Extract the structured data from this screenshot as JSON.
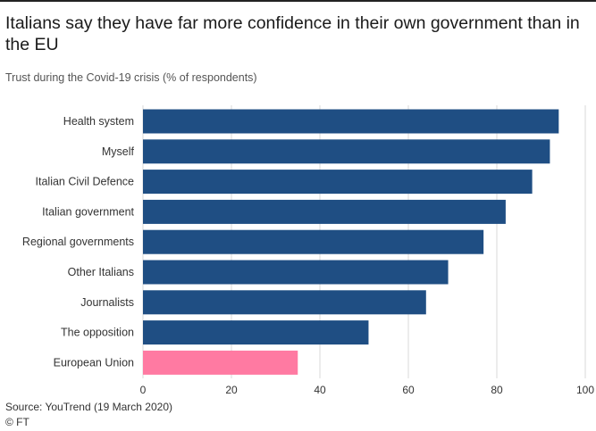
{
  "title": "Italians say they have far more confidence in their own government than in the EU",
  "subtitle": "Trust during the Covid-19 crisis (% of respondents)",
  "source": "Source: YouTrend (19 March 2020)",
  "credit": "© FT",
  "colors": {
    "bar_default": "#1f4e83",
    "bar_highlight": "#ff7aa2",
    "gridline": "#dadada",
    "axis_text": "#333333"
  },
  "chart_data": {
    "type": "bar",
    "orientation": "horizontal",
    "categories": [
      "Health system",
      "Myself",
      "Italian Civil Defence",
      "Italian government",
      "Regional governments",
      "Other Italians",
      "Journalists",
      "The opposition",
      "European Union"
    ],
    "values": [
      94,
      92,
      88,
      82,
      77,
      69,
      64,
      51,
      35
    ],
    "highlight": [
      "European Union"
    ],
    "xlim": [
      0,
      100
    ],
    "xticks": [
      0,
      20,
      40,
      60,
      80,
      100
    ],
    "grid": true,
    "xlabel": "",
    "ylabel": ""
  }
}
